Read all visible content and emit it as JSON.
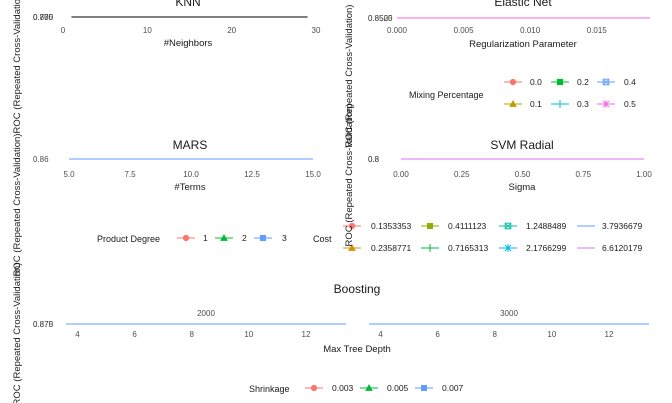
{
  "chart_data": [
    {
      "id": "knn",
      "type": "line",
      "title": "KNN",
      "xlabel": "#Neighbors",
      "ylabel": "ROC (Repeated Cross-Validation)",
      "xticks": [
        "0",
        "10",
        "20",
        "30"
      ],
      "xlim": [
        0,
        30
      ],
      "yticks": [
        "0.750",
        "0.775",
        "0.800"
      ],
      "series": [
        {
          "x": [
            1,
            3,
            5,
            7,
            9,
            11,
            13,
            15,
            17,
            19,
            21,
            23,
            25,
            27,
            29
          ],
          "values": [
            0.78,
            0.78,
            0.78,
            0.78,
            0.78,
            0.78,
            0.78,
            0.78,
            0.78,
            0.78,
            0.78,
            0.78,
            0.78,
            0.78,
            0.78
          ],
          "color": "#000000"
        }
      ]
    },
    {
      "id": "enet",
      "type": "line",
      "title": "Elastic Net",
      "xlabel": "Regularization Parameter",
      "ylabel": "ROC (Repeated Cross-Validation)",
      "xticks": [
        "0.000",
        "0.005",
        "0.010",
        "0.015"
      ],
      "xlim": [
        0,
        0.019
      ],
      "yticks": [
        "0.8500",
        "0.8525"
      ],
      "legend": {
        "title": "Mixing Percentage",
        "position": "bottom",
        "items": [
          {
            "label": "0.0",
            "color": "#F8766D",
            "shape": "circle"
          },
          {
            "label": "0.1",
            "color": "#B79F00",
            "shape": "triangle"
          },
          {
            "label": "0.2",
            "color": "#00BA38",
            "shape": "square-filled"
          },
          {
            "label": "0.3",
            "color": "#00BFC4",
            "shape": "plus"
          },
          {
            "label": "0.4",
            "color": "#619CFF",
            "shape": "square-cross"
          },
          {
            "label": "0.5",
            "color": "#F564E3",
            "shape": "star"
          }
        ]
      },
      "series": [
        {
          "x": [
            0,
            0.019
          ],
          "values": [
            0.8512,
            0.8512
          ],
          "color": "#F564E3"
        }
      ]
    },
    {
      "id": "mars",
      "type": "line",
      "title": "MARS",
      "xlabel": "#Terms",
      "ylabel": "ROC (Repeated Cross-Validation)",
      "xticks": [
        "5.0",
        "7.5",
        "10.0",
        "12.5",
        "15.0"
      ],
      "xlim": [
        5,
        15
      ],
      "yticks": [
        "0.86"
      ],
      "legend": {
        "title": "Product Degree",
        "position": "bottom",
        "items": [
          {
            "label": "1",
            "color": "#F8766D",
            "shape": "circle"
          },
          {
            "label": "2",
            "color": "#00BA38",
            "shape": "triangle"
          },
          {
            "label": "3",
            "color": "#619CFF",
            "shape": "square"
          }
        ]
      },
      "series": [
        {
          "x": [
            5,
            15
          ],
          "values": [
            0.86,
            0.86
          ],
          "color": "#619CFF"
        }
      ]
    },
    {
      "id": "svm",
      "type": "line",
      "title": "SVM Radial",
      "xlabel": "Sigma",
      "ylabel": "ROC (Repeated Cross-Validation)",
      "xticks": [
        "0.00",
        "0.25",
        "0.50",
        "0.75",
        "1.00"
      ],
      "xlim": [
        0,
        1
      ],
      "yticks": [
        "0.8",
        "0.8"
      ],
      "legend": {
        "title": "Cost",
        "position": "bottom",
        "items": [
          {
            "label": "0.1353353",
            "color": "#F8766D",
            "shape": "circle"
          },
          {
            "label": "0.2358771",
            "color": "#D39200",
            "shape": "triangle"
          },
          {
            "label": "0.4111123",
            "color": "#93AA00",
            "shape": "square"
          },
          {
            "label": "0.7165313",
            "color": "#00BA38",
            "shape": "plus"
          },
          {
            "label": "1.2488489",
            "color": "#00C19F",
            "shape": "square-cross"
          },
          {
            "label": "2.1766299",
            "color": "#00B9E3",
            "shape": "star"
          },
          {
            "label": "3.7936679",
            "color": "#619CFF",
            "shape": "none"
          },
          {
            "label": "6.6120179",
            "color": "#DB72FB",
            "shape": "none"
          }
        ]
      },
      "series": [
        {
          "x": [
            0,
            1
          ],
          "values": [
            0.8,
            0.8
          ],
          "color": "#DB72FB"
        }
      ]
    },
    {
      "id": "boost",
      "type": "line",
      "title": "Boosting",
      "xlabel": "Max Tree Depth",
      "ylabel": "ROC (Repeated Cross-Validation)",
      "yticks": [
        "0.870",
        "0.875"
      ],
      "facets": [
        {
          "label": "2000",
          "xticks": [
            "4",
            "6",
            "8",
            "10",
            "12"
          ],
          "xlim": [
            3.6,
            13.4
          ]
        },
        {
          "label": "3000",
          "xticks": [
            "4",
            "6",
            "8",
            "10",
            "12"
          ],
          "xlim": [
            3.6,
            13.4
          ]
        }
      ],
      "legend": {
        "title": "Shrinkage",
        "position": "bottom",
        "items": [
          {
            "label": "0.003",
            "color": "#F8766D",
            "shape": "circle"
          },
          {
            "label": "0.005",
            "color": "#00BA38",
            "shape": "triangle"
          },
          {
            "label": "0.007",
            "color": "#619CFF",
            "shape": "square"
          }
        ]
      },
      "series": [
        {
          "x": [
            3.6,
            13.4
          ],
          "values": [
            0.8735,
            0.8735
          ],
          "color": "#619CFF"
        }
      ]
    }
  ]
}
